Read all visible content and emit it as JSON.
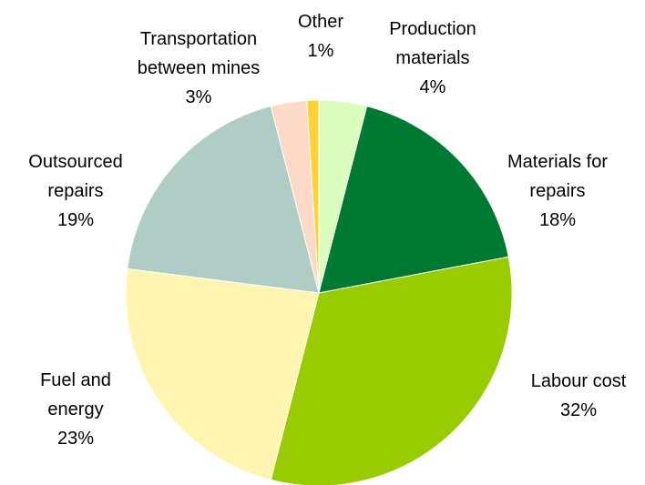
{
  "chart_data": {
    "type": "pie",
    "categories": [
      "Production materials",
      "Materials for repairs",
      "Labour cost",
      "Fuel and energy",
      "Outsourced repairs",
      "Transportation between mines",
      "Other"
    ],
    "values": [
      4,
      18,
      32,
      23,
      19,
      3,
      1
    ],
    "value_labels": [
      "4%",
      "18%",
      "32%",
      "23%",
      "19%",
      "3%",
      "1%"
    ],
    "colors": [
      "#dafcbc",
      "#007a33",
      "#99cc00",
      "#fff5b0",
      "#afcdc4",
      "#fddac8",
      "#ffd338"
    ]
  }
}
